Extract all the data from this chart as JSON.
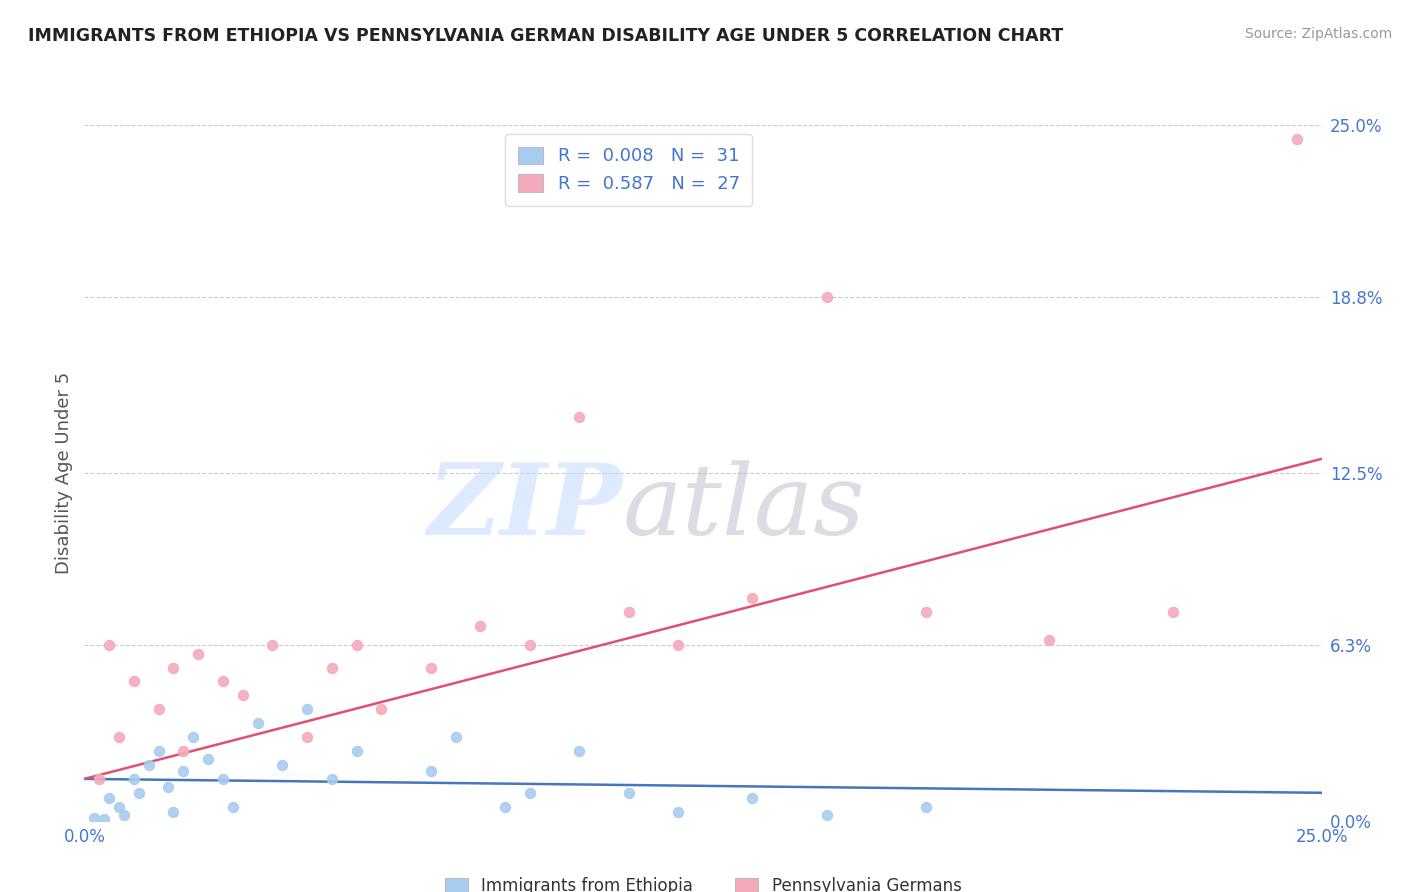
{
  "title": "IMMIGRANTS FROM ETHIOPIA VS PENNSYLVANIA GERMAN DISABILITY AGE UNDER 5 CORRELATION CHART",
  "source": "Source: ZipAtlas.com",
  "ylabel": "Disability Age Under 5",
  "ytick_values": [
    0.0,
    6.3,
    12.5,
    18.8,
    25.0
  ],
  "xlim": [
    0.0,
    25.0
  ],
  "ylim": [
    0.0,
    25.0
  ],
  "legend_label1": "Immigrants from Ethiopia",
  "legend_label2": "Pennsylvania Germans",
  "color_blue": "#A8CCF0",
  "color_pink": "#F5AABB",
  "color_blue_line": "#4477BB",
  "color_pink_line": "#E05070",
  "color_axis_label": "#4477CC",
  "color_grid": "#CCCCCC",
  "blue_scatter_x": [
    0.2,
    0.4,
    0.5,
    0.7,
    0.8,
    1.0,
    1.1,
    1.3,
    1.5,
    1.7,
    1.8,
    2.0,
    2.2,
    2.5,
    2.8,
    3.0,
    3.5,
    4.0,
    4.5,
    5.0,
    5.5,
    7.0,
    7.5,
    8.5,
    9.0,
    10.0,
    11.0,
    12.0,
    13.5,
    15.0,
    17.0
  ],
  "blue_scatter_y": [
    0.1,
    0.05,
    0.8,
    0.5,
    0.2,
    1.5,
    1.0,
    2.0,
    2.5,
    1.2,
    0.3,
    1.8,
    3.0,
    2.2,
    1.5,
    0.5,
    3.5,
    2.0,
    4.0,
    1.5,
    2.5,
    1.8,
    3.0,
    0.5,
    1.0,
    2.5,
    1.0,
    0.3,
    0.8,
    0.2,
    0.5
  ],
  "pink_scatter_x": [
    0.3,
    0.5,
    0.7,
    1.0,
    1.5,
    1.8,
    2.0,
    2.3,
    2.8,
    3.2,
    3.8,
    4.5,
    5.0,
    5.5,
    6.0,
    7.0,
    8.0,
    9.0,
    10.0,
    11.0,
    12.0,
    13.5,
    15.0,
    17.0,
    19.5,
    22.0,
    24.5
  ],
  "pink_scatter_y": [
    1.5,
    6.3,
    3.0,
    5.0,
    4.0,
    5.5,
    2.5,
    6.0,
    5.0,
    4.5,
    6.3,
    3.0,
    5.5,
    6.3,
    4.0,
    5.5,
    7.0,
    6.3,
    14.5,
    7.5,
    6.3,
    8.0,
    18.8,
    7.5,
    6.5,
    7.5,
    24.5
  ],
  "pink_line_x0": 0.0,
  "pink_line_y0": 1.5,
  "pink_line_x1": 25.0,
  "pink_line_y1": 13.0,
  "blue_line_x0": 0.0,
  "blue_line_y0": 1.5,
  "blue_line_x1": 25.0,
  "blue_line_y1": 1.0
}
